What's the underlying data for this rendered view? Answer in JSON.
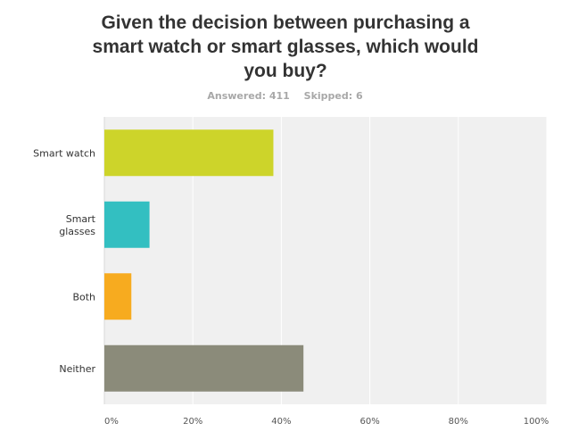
{
  "chart_data": {
    "type": "bar",
    "orientation": "horizontal",
    "title": "Given the decision between purchasing a smart watch or smart glasses, which would you buy?",
    "answered_label": "Answered: 411",
    "skipped_label": "Skipped: 6",
    "categories": [
      "Smart watch",
      "Smart glasses",
      "Both",
      "Neither"
    ],
    "values": [
      38.2,
      10.2,
      6.1,
      45.0
    ],
    "colors": [
      "#cdd42a",
      "#33bfc1",
      "#f7ab1f",
      "#8b8b7a"
    ],
    "xlim": [
      0,
      100
    ],
    "ticks": [
      "0%",
      "20%",
      "40%",
      "60%",
      "80%",
      "100%"
    ],
    "grid": true
  }
}
